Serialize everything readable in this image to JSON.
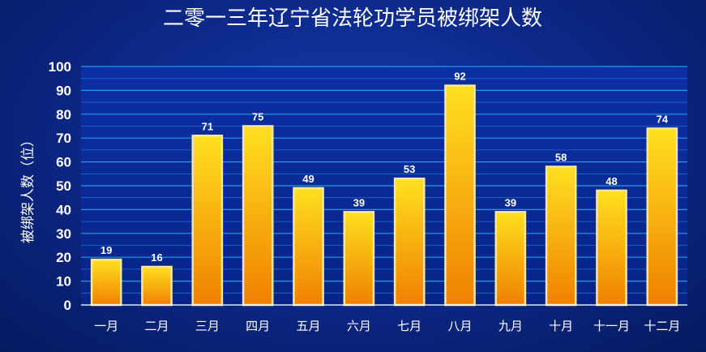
{
  "chart_data": {
    "type": "bar",
    "title": "二零一三年辽宁省法轮功学员被绑架人数",
    "ylabel": "被绑架人数（位）",
    "xlabel": "",
    "categories": [
      "一月",
      "二月",
      "三月",
      "四月",
      "五月",
      "六月",
      "七月",
      "八月",
      "九月",
      "十月",
      "十一月",
      "十二月"
    ],
    "values": [
      19,
      16,
      71,
      75,
      49,
      39,
      53,
      92,
      39,
      58,
      48,
      74
    ],
    "ylim": [
      0,
      100
    ],
    "yticks": [
      0,
      10,
      20,
      30,
      40,
      50,
      60,
      70,
      80,
      90,
      100
    ],
    "grid": true,
    "legend": "none",
    "colors": {
      "bar_top": "#ffe020",
      "bar_bottom": "#f08000",
      "bar_border": "#f8e7a0",
      "plot_bg": "#0a2a95",
      "grid": "#1e9be0",
      "text": "#ffffff"
    }
  }
}
